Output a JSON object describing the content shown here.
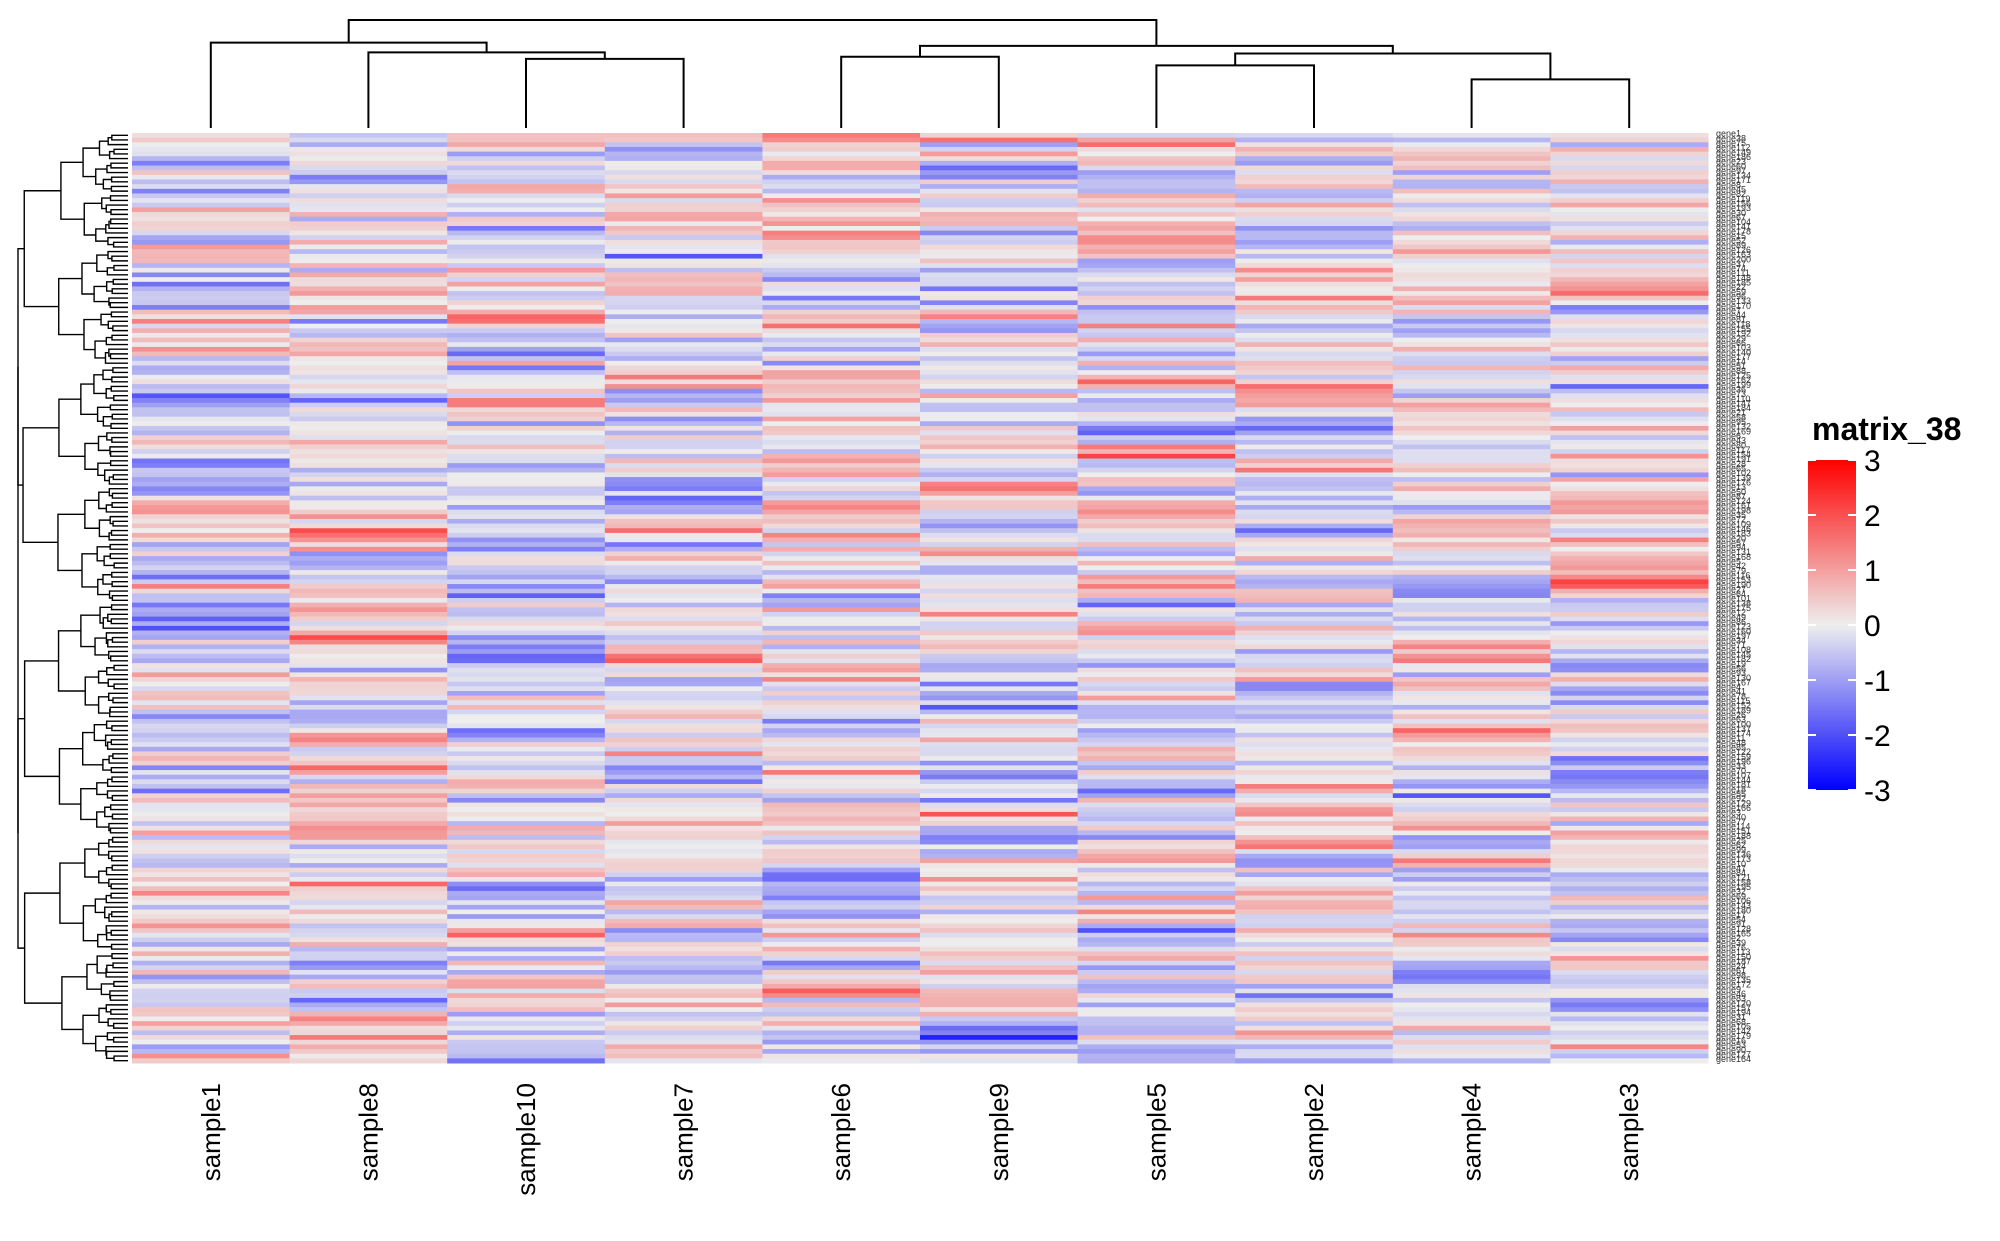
{
  "chart_data": {
    "type": "heatmap",
    "title": "",
    "legend": {
      "title": "matrix_38",
      "placement": "right",
      "range": [
        -3,
        3
      ],
      "ticks": [
        3,
        2,
        1,
        0,
        -1,
        -2,
        -3
      ],
      "tick_labels": [
        "3",
        "2",
        "1",
        "0",
        "-1",
        "-2",
        "-3"
      ],
      "colors": {
        "low": "#0000ff",
        "mid": "#eeeeee",
        "high": "#ff0000"
      }
    },
    "columns": [
      "sample1",
      "sample8",
      "sample10",
      "sample7",
      "sample6",
      "sample9",
      "sample5",
      "sample2",
      "sample4",
      "sample3"
    ],
    "row_count": 200,
    "row_label_pattern": "gene",
    "column_dendrogram": {
      "order": [
        "sample1",
        "sample8",
        "sample10",
        "sample7",
        "sample6",
        "sample9",
        "sample5",
        "sample2",
        "sample4",
        "sample3"
      ],
      "merges": [
        {
          "left": "sample4",
          "right": "sample3",
          "height": 0.45
        },
        {
          "left": "sample5",
          "right": "sample2",
          "height": 0.58
        },
        {
          "left": "sample10",
          "right": "sample7",
          "height": 0.64
        },
        {
          "left": "sample6",
          "right": "sample9",
          "height": 0.66
        },
        {
          "left": "sample8",
          "right": "sample10,sample7",
          "height": 0.7
        },
        {
          "left": "sample5,sample2",
          "right": "sample4,sample3",
          "height": 0.69
        },
        {
          "left": "sample6,sample9",
          "right": "sample5,sample2,sample4,sample3",
          "height": 0.76
        },
        {
          "left": "sample1",
          "right": "sample8,sample10,sample7",
          "height": 0.79
        },
        {
          "left": "sample1,sample8,sample10,sample7",
          "right": "sample6,sample9,sample5,sample2,sample4,sample3",
          "height": 1.0
        }
      ]
    },
    "notes": "Row cluster dendrogram shown on left; gene row labels shown on right."
  }
}
